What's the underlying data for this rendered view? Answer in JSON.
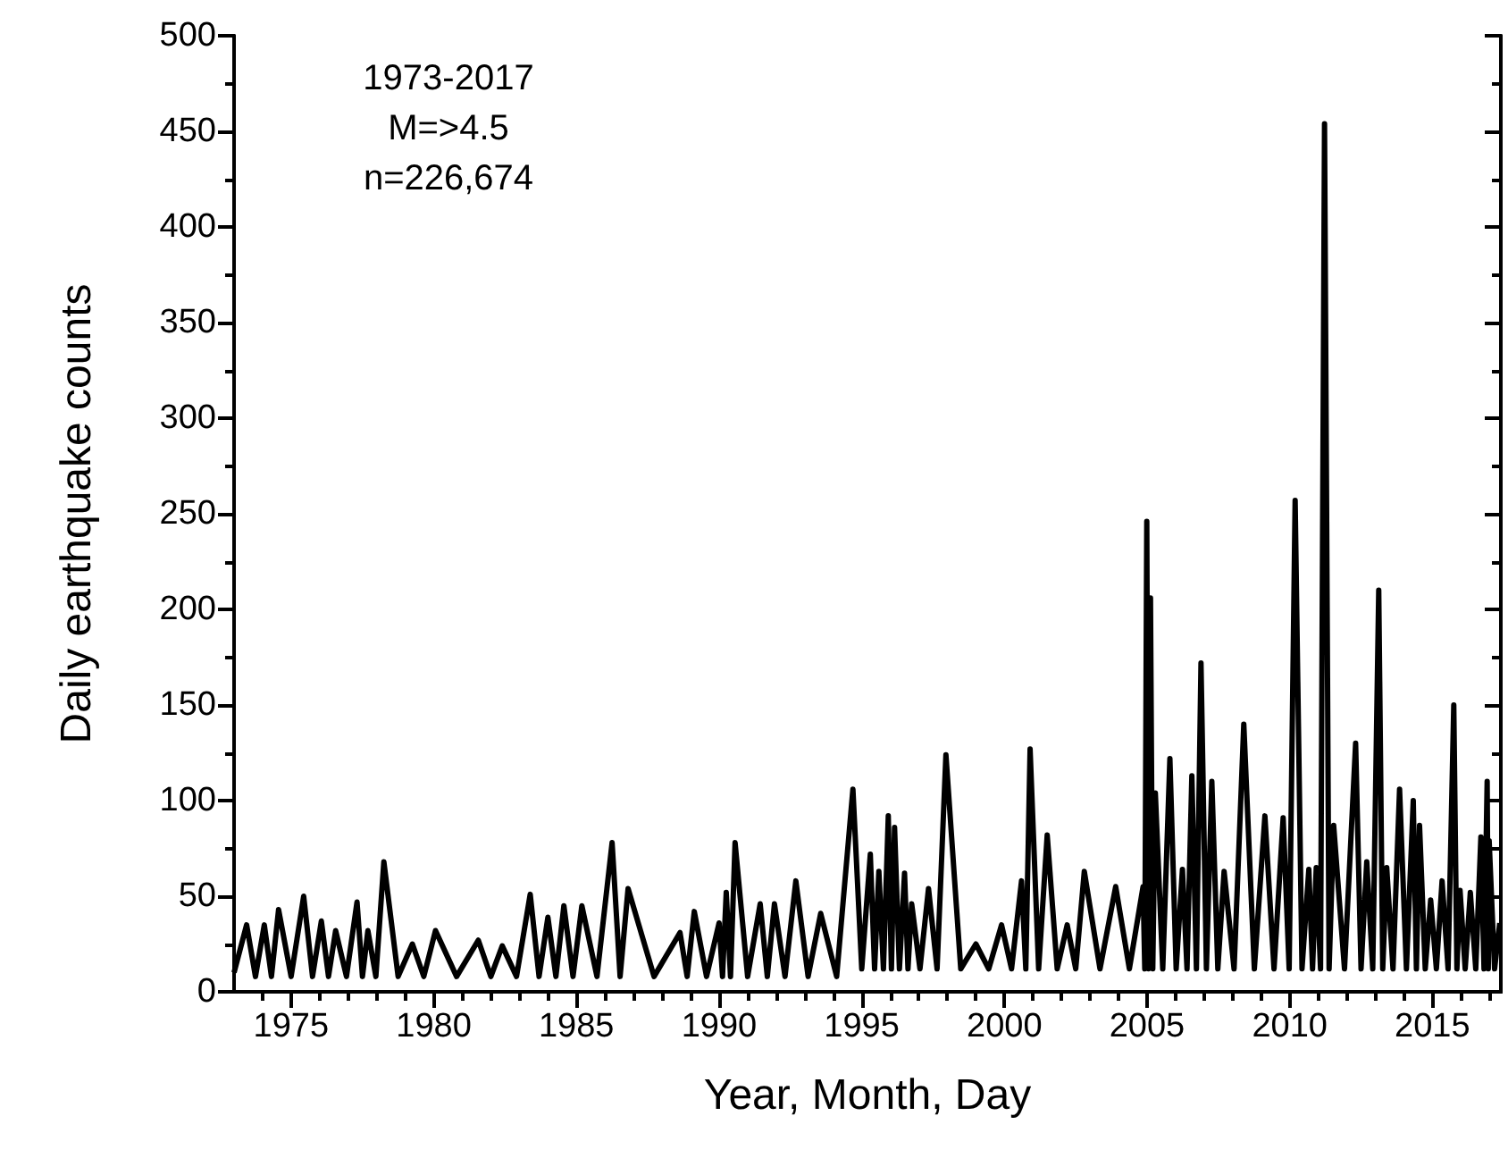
{
  "chart_data": {
    "type": "line",
    "xlabel": "Year, Month, Day",
    "ylabel": "Daily earthquake counts",
    "annotations": [
      "1973-2017",
      "M=>4.5",
      "n=226,674"
    ],
    "xlim": [
      1973,
      2017.4
    ],
    "xticks": [
      1975,
      1980,
      1985,
      1990,
      1995,
      2000,
      2005,
      2010,
      2015,
      {
        "value": 1974,
        "label": null
      },
      {
        "value": 1976,
        "label": null
      },
      {
        "value": 1977,
        "label": null
      },
      {
        "value": 1978,
        "label": null
      },
      {
        "value": 1979,
        "label": null
      },
      {
        "value": 1981,
        "label": null
      },
      {
        "value": 1982,
        "label": null
      },
      {
        "value": 1983,
        "label": null
      },
      {
        "value": 1984,
        "label": null
      },
      {
        "value": 1986,
        "label": null
      },
      {
        "value": 1987,
        "label": null
      },
      {
        "value": 1988,
        "label": null
      },
      {
        "value": 1989,
        "label": null
      },
      {
        "value": 1991,
        "label": null
      },
      {
        "value": 1992,
        "label": null
      },
      {
        "value": 1993,
        "label": null
      },
      {
        "value": 1994,
        "label": null
      },
      {
        "value": 1996,
        "label": null
      },
      {
        "value": 1997,
        "label": null
      },
      {
        "value": 1998,
        "label": null
      },
      {
        "value": 1999,
        "label": null
      },
      {
        "value": 2001,
        "label": null
      },
      {
        "value": 2002,
        "label": null
      },
      {
        "value": 2003,
        "label": null
      },
      {
        "value": 2004,
        "label": null
      },
      {
        "value": 2006,
        "label": null
      },
      {
        "value": 2007,
        "label": null
      },
      {
        "value": 2008,
        "label": null
      },
      {
        "value": 2009,
        "label": null
      },
      {
        "value": 2011,
        "label": null
      },
      {
        "value": 2012,
        "label": null
      },
      {
        "value": 2013,
        "label": null
      },
      {
        "value": 2014,
        "label": null
      },
      {
        "value": 2016,
        "label": null
      },
      {
        "value": 2017,
        "label": null
      }
    ],
    "ylim": [
      0,
      500
    ],
    "yticks": [
      0,
      50,
      100,
      150,
      200,
      250,
      300,
      350,
      400,
      450,
      500,
      {
        "value": 25,
        "label": null
      },
      {
        "value": 75,
        "label": null
      },
      {
        "value": 125,
        "label": null
      },
      {
        "value": 175,
        "label": null
      },
      {
        "value": 225,
        "label": null
      },
      {
        "value": 275,
        "label": null
      },
      {
        "value": 325,
        "label": null
      },
      {
        "value": 375,
        "label": null
      },
      {
        "value": 425,
        "label": null
      },
      {
        "value": 475,
        "label": null
      }
    ],
    "grid": false,
    "marker": "none",
    "line_style": "solid",
    "series": [
      {
        "color": "#000000",
        "x": [
          1973.0,
          1973.44,
          1973.75,
          1974.06,
          1974.31,
          1974.56,
          1975.0,
          1975.44,
          1975.75,
          1976.06,
          1976.31,
          1976.56,
          1976.94,
          1977.31,
          1977.5,
          1977.69,
          1977.97,
          1978.25,
          1978.75,
          1979.25,
          1979.65,
          1980.06,
          1980.8,
          1981.56,
          1982.0,
          1982.4,
          1982.9,
          1983.38,
          1983.69,
          1984.0,
          1984.28,
          1984.56,
          1984.88,
          1985.19,
          1985.72,
          1986.25,
          1986.53,
          1986.81,
          1987.72,
          1988.63,
          1988.88,
          1989.13,
          1989.56,
          1990.0,
          1990.12,
          1990.25,
          1990.4,
          1990.56,
          1991.0,
          1991.44,
          1991.69,
          1991.94,
          1992.31,
          1992.69,
          1993.12,
          1993.56,
          1994.12,
          1994.69,
          1995.0,
          1995.3,
          1995.45,
          1995.6,
          1995.76,
          1995.93,
          1996.04,
          1996.15,
          1996.32,
          1996.5,
          1996.62,
          1996.75,
          1997.04,
          1997.34,
          1997.64,
          1997.95,
          1998.47,
          1999.0,
          1999.45,
          1999.9,
          2000.25,
          2000.6,
          2000.75,
          2000.9,
          2001.2,
          2001.5,
          2001.85,
          2002.2,
          2002.5,
          2002.8,
          2003.35,
          2003.9,
          2004.38,
          2004.86,
          2004.92,
          2004.99,
          2005.05,
          2005.12,
          2005.2,
          2005.29,
          2005.55,
          2005.8,
          2006.02,
          2006.24,
          2006.4,
          2006.57,
          2006.73,
          2006.89,
          2007.08,
          2007.27,
          2007.48,
          2007.7,
          2008.05,
          2008.39,
          2008.76,
          2009.13,
          2009.45,
          2009.77,
          2009.98,
          2010.19,
          2010.43,
          2010.67,
          2010.8,
          2010.93,
          2011.08,
          2011.22,
          2011.38,
          2011.54,
          2011.92,
          2012.31,
          2012.5,
          2012.7,
          2012.91,
          2013.12,
          2013.26,
          2013.4,
          2013.62,
          2013.85,
          2014.09,
          2014.33,
          2014.44,
          2014.55,
          2014.75,
          2014.94,
          2015.14,
          2015.34,
          2015.55,
          2015.75,
          2015.86,
          2015.97,
          2016.15,
          2016.33,
          2016.52,
          2016.7,
          2016.81,
          2016.92,
          2016.96,
          2016.99,
          2017.18,
          2017.36
        ],
        "values": [
          10,
          35,
          8,
          35,
          8,
          43,
          8,
          50,
          8,
          37,
          8,
          32,
          8,
          47,
          8,
          32,
          8,
          68,
          8,
          25,
          8,
          32,
          8,
          27,
          8,
          24,
          8,
          51,
          8,
          39,
          8,
          45,
          8,
          45,
          8,
          78,
          8,
          54,
          8,
          31,
          8,
          42,
          8,
          36,
          8,
          52,
          8,
          78,
          8,
          46,
          8,
          46,
          8,
          58,
          8,
          41,
          8,
          106,
          12,
          72,
          12,
          63,
          12,
          92,
          12,
          86,
          12,
          62,
          12,
          46,
          12,
          54,
          12,
          124,
          12,
          25,
          12,
          35,
          12,
          58,
          12,
          127,
          12,
          82,
          12,
          35,
          12,
          63,
          12,
          55,
          12,
          55,
          12,
          246,
          12,
          206,
          12,
          104,
          12,
          122,
          12,
          64,
          12,
          113,
          12,
          172,
          12,
          110,
          12,
          63,
          12,
          140,
          12,
          92,
          12,
          91,
          12,
          257,
          12,
          64,
          12,
          65,
          12,
          454,
          12,
          87,
          12,
          130,
          12,
          68,
          12,
          210,
          12,
          65,
          12,
          106,
          12,
          100,
          12,
          87,
          12,
          48,
          12,
          58,
          12,
          150,
          12,
          53,
          12,
          52,
          12,
          81,
          12,
          110,
          12,
          79,
          12,
          36
        ]
      }
    ]
  }
}
